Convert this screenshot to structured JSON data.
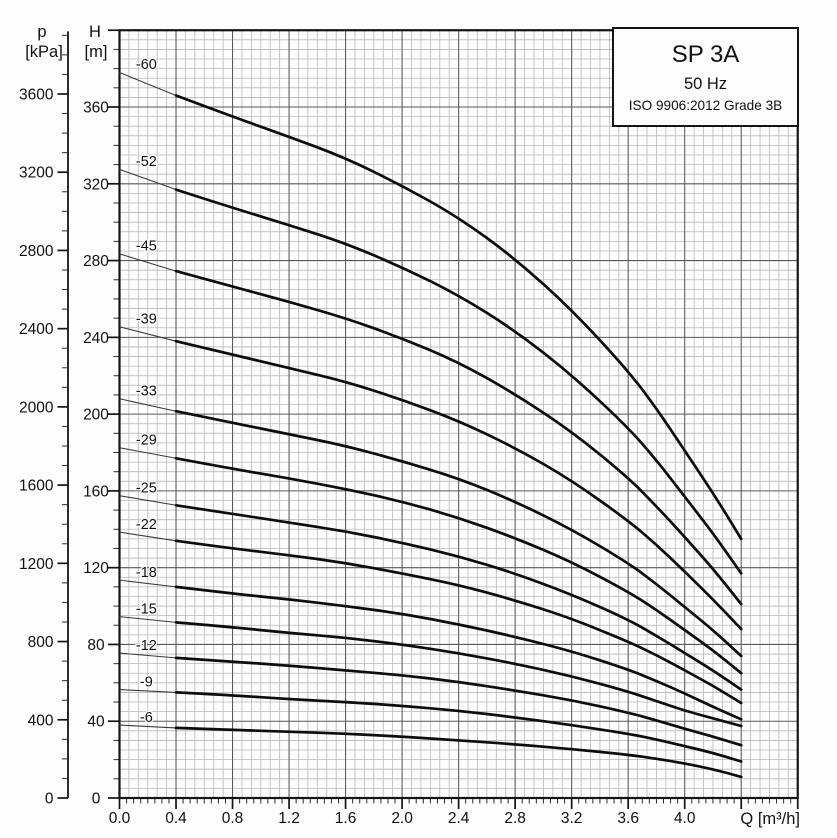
{
  "title_box": {
    "model": "SP 3A",
    "frequency": "50 Hz",
    "standard": "ISO 9906:2012 Grade 3B"
  },
  "chart_data": {
    "type": "line",
    "title": "SP 3A",
    "subtitle": "50 Hz",
    "note": "ISO 9906:2012 Grade 3B",
    "legend_position": "labels-above-curve-start",
    "grid": "minor+major",
    "x_axis": {
      "label": "Q [m³/h]",
      "min": 0,
      "max": 4.8,
      "major_tick_step": 0.4,
      "minor_tick_step": 0.05,
      "grid_divisions_per_major": 6,
      "tick_labels": [
        "0.0",
        "0.4",
        "0.8",
        "1.2",
        "1.6",
        "2.0",
        "2.4",
        "2.8",
        "3.2",
        "3.6",
        "4.0"
      ]
    },
    "y_axis_head": {
      "symbol": "H",
      "unit": "[m]",
      "min": 0,
      "max": 400,
      "major_step": 40,
      "minor_tick_step": 10,
      "grid_minor_step": 5,
      "tick_labels": [
        0,
        40,
        80,
        120,
        160,
        200,
        240,
        280,
        320,
        360
      ]
    },
    "y_axis_pressure": {
      "symbol": "p",
      "unit": "[kPa]",
      "min": 0,
      "max": 3920,
      "major_step": 400,
      "minor_tick_step": 100,
      "tick_labels": [
        0,
        400,
        800,
        1200,
        1600,
        2000,
        2400,
        2800,
        3200,
        3600
      ]
    },
    "thin_segment_q_range": [
      0,
      0.4
    ],
    "thick_segment_q_range": [
      0.4,
      4.4
    ],
    "q_points": [
      0,
      0.4,
      0.8,
      1.2,
      1.6,
      2.0,
      2.4,
      2.8,
      3.2,
      3.6,
      3.8,
      4.0,
      4.2,
      4.4
    ],
    "series": [
      {
        "label": "-60",
        "stages": 60,
        "head_m": [
          378,
          366,
          355,
          344.5,
          333.5,
          319,
          302.5,
          281,
          254.5,
          222.5,
          203,
          181,
          159,
          135
        ]
      },
      {
        "label": "-52",
        "stages": 52,
        "head_m": [
          327.5,
          317,
          307.5,
          298.5,
          289,
          276.5,
          262,
          243.5,
          220.5,
          193,
          176,
          157,
          138,
          117
        ]
      },
      {
        "label": "-45",
        "stages": 45,
        "head_m": [
          283.5,
          274.5,
          266.5,
          258.5,
          250,
          239.5,
          227,
          210.5,
          191,
          167,
          152,
          136,
          119.5,
          101
        ]
      },
      {
        "label": "-39",
        "stages": 39,
        "head_m": [
          245.5,
          238,
          231,
          224,
          217,
          207.5,
          196.5,
          182.5,
          165.5,
          144.5,
          132,
          118,
          103.5,
          88
        ]
      },
      {
        "label": "-33",
        "stages": 33,
        "head_m": [
          208,
          201.5,
          195.5,
          189.5,
          183.5,
          175.5,
          166.5,
          154.5,
          140,
          122.5,
          111.5,
          99.5,
          87.5,
          74
        ]
      },
      {
        "label": "-29",
        "stages": 29,
        "head_m": [
          182.5,
          177,
          171.5,
          166.5,
          161,
          154.5,
          146,
          135.5,
          123,
          107.5,
          98,
          87.5,
          77,
          65
        ]
      },
      {
        "label": "-25",
        "stages": 25,
        "head_m": [
          157.5,
          152.5,
          148,
          143.5,
          139,
          133,
          126,
          117,
          106,
          93,
          84.5,
          75.5,
          66.5,
          56.5
        ]
      },
      {
        "label": "-22",
        "stages": 22,
        "head_m": [
          138.5,
          134,
          130,
          126.5,
          122.5,
          117,
          111,
          103,
          93.5,
          81.5,
          74.5,
          66.5,
          58.5,
          49.5
        ]
      },
      {
        "label": "-18",
        "stages": 18,
        "head_m": [
          113.5,
          110,
          106.5,
          103.5,
          100,
          96,
          90.5,
          84,
          76.5,
          67,
          61,
          54.5,
          47.5,
          41
        ]
      },
      {
        "label": "-15",
        "stages": 15,
        "head_m": [
          94.5,
          91.5,
          89,
          86,
          83.5,
          80,
          75.5,
          70,
          63.5,
          55.5,
          50.5,
          45.5,
          41.5,
          37.5
        ]
      },
      {
        "label": "-12",
        "stages": 12,
        "head_m": [
          75.5,
          73,
          71,
          69,
          66.5,
          64,
          60.5,
          56,
          51,
          44.5,
          40.5,
          36,
          32,
          27.5
        ]
      },
      {
        "label": "-9",
        "stages": 9,
        "head_m": [
          56.5,
          55,
          53.5,
          51.5,
          50,
          48,
          45.5,
          42,
          38,
          33.5,
          30.5,
          27,
          23.5,
          19
        ]
      },
      {
        "label": "-6",
        "stages": 6,
        "head_m": [
          38,
          36.5,
          35.5,
          34.5,
          33.5,
          32,
          30,
          28,
          25.5,
          22.5,
          20.5,
          18,
          15,
          11
        ]
      }
    ]
  }
}
